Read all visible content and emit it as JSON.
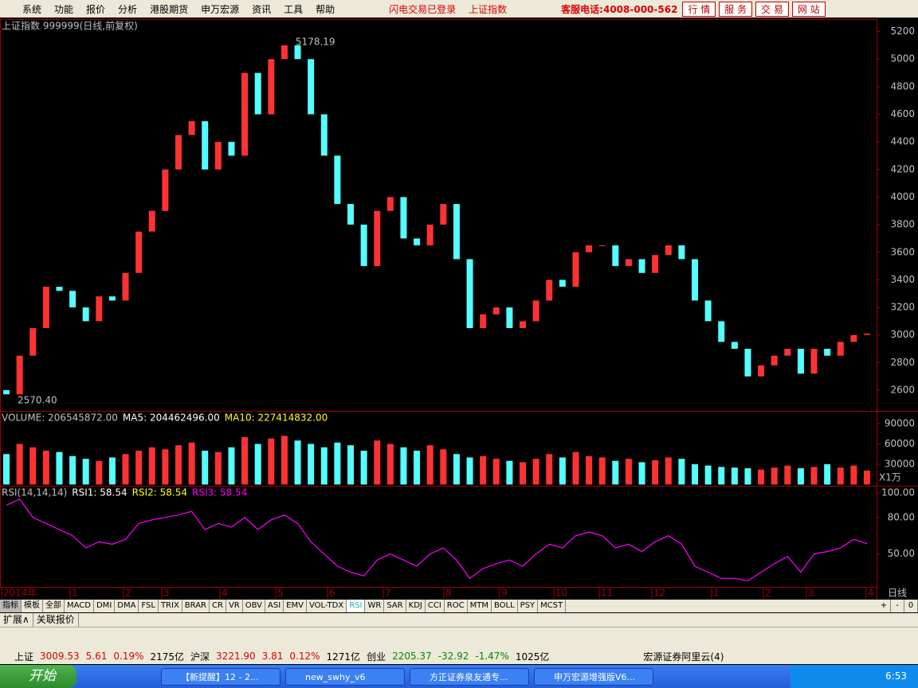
{
  "menu": {
    "items": [
      "系统",
      "功能",
      "报价",
      "分析",
      "港股期货",
      "申万宏源",
      "资讯",
      "工具",
      "帮助"
    ],
    "status": [
      "闪电交易已登录",
      "上证指数"
    ],
    "hotline": "客服电话:4008-000-562",
    "buttons": [
      "行 情",
      "服 务",
      "交 易",
      "网 站"
    ]
  },
  "chart_data": [
    {
      "type": "candlestick",
      "title": "上证指数 999999(日线,前复权)",
      "annotations": [
        "5178.19",
        "2570.40"
      ],
      "open": [
        2600,
        2570,
        2850,
        3050,
        3350,
        3320,
        3200,
        3100,
        3280,
        3250,
        3450,
        3750,
        3900,
        4200,
        4450,
        4550,
        4200,
        4400,
        4300,
        4900,
        4600,
        5000,
        5100,
        5000,
        4600,
        4300,
        3950,
        3800,
        3500,
        3900,
        4000,
        3700,
        3650,
        3800,
        3950,
        3550,
        3050,
        3150,
        3200,
        3050,
        3100,
        3250,
        3400,
        3350,
        3600,
        3650,
        3650,
        3500,
        3550,
        3450,
        3580,
        3650,
        3550,
        3250,
        3100,
        2950,
        2900,
        2700,
        2780,
        2850,
        2900,
        2720,
        2900,
        2850,
        2950,
        3000
      ],
      "close": [
        2570,
        2850,
        3050,
        3350,
        3320,
        3200,
        3100,
        3280,
        3250,
        3450,
        3750,
        3900,
        4200,
        4450,
        4550,
        4200,
        4400,
        4300,
        4900,
        4600,
        5000,
        5100,
        5000,
        4600,
        4300,
        3950,
        3800,
        3500,
        3900,
        4000,
        3700,
        3650,
        3800,
        3950,
        3550,
        3050,
        3150,
        3200,
        3050,
        3100,
        3250,
        3400,
        3350,
        3600,
        3650,
        3650,
        3500,
        3550,
        3450,
        3580,
        3650,
        3550,
        3250,
        3100,
        2950,
        2900,
        2700,
        2780,
        2850,
        2900,
        2720,
        2900,
        2850,
        2950,
        3000,
        3009.53
      ],
      "up_color": "#ff3232",
      "down_color": "#54ffff",
      "ylim": [
        2450,
        5290
      ],
      "yticks": [
        2600,
        2800,
        3000,
        3200,
        3400,
        3600,
        3800,
        4000,
        4200,
        4400,
        4600,
        4800,
        5000,
        5200
      ]
    },
    {
      "type": "bar",
      "title": "VOLUME: 206545872.00",
      "legend": [
        {
          "text": "MA5: 204462496.00",
          "color": "#ffffff"
        },
        {
          "text": "MA10: 227414832.00",
          "color": "#ffff00"
        }
      ],
      "values": [
        45000,
        60000,
        55000,
        50000,
        48000,
        42000,
        38000,
        35000,
        40000,
        45000,
        50000,
        55000,
        52000,
        58000,
        62000,
        50000,
        48000,
        55000,
        70000,
        60000,
        68000,
        72000,
        65000,
        60000,
        55000,
        62000,
        58000,
        50000,
        65000,
        60000,
        55000,
        50000,
        58000,
        52000,
        45000,
        40000,
        42000,
        38000,
        35000,
        33000,
        38000,
        45000,
        40000,
        48000,
        42000,
        40000,
        35000,
        38000,
        33000,
        36000,
        40000,
        38000,
        30000,
        28000,
        26000,
        25000,
        24000,
        22000,
        25000,
        28000,
        24000,
        26000,
        30000,
        25000,
        28000,
        20654.5872
      ],
      "unit": "X1万",
      "ylim": [
        -1800,
        108800
      ],
      "yticks": [
        30000,
        60000,
        90000
      ]
    },
    {
      "type": "line",
      "title": "RSI(14,14,14)",
      "legend": [
        {
          "text": "RSI1: 58.54",
          "color": "#ffffff"
        },
        {
          "text": "RSI2: 58.54",
          "color": "#ffff00"
        },
        {
          "text": "RSI3: 58.54",
          "color": "#ff00ff"
        }
      ],
      "color": "#ff00ff",
      "values": [
        90,
        95,
        80,
        75,
        70,
        65,
        55,
        60,
        58,
        62,
        75,
        78,
        80,
        82,
        85,
        70,
        75,
        72,
        80,
        70,
        78,
        82,
        75,
        60,
        50,
        40,
        35,
        32,
        45,
        50,
        45,
        40,
        50,
        55,
        45,
        30,
        38,
        42,
        45,
        40,
        50,
        58,
        55,
        65,
        68,
        65,
        55,
        58,
        52,
        60,
        65,
        58,
        40,
        35,
        30,
        30,
        28,
        35,
        42,
        48,
        35,
        50,
        52,
        55,
        62,
        58.54
      ],
      "ylim": [
        23,
        106
      ],
      "yticks": [
        {
          "value": 50,
          "label": "50.00"
        },
        {
          "value": 80,
          "label": "80.00"
        },
        {
          "value": 100,
          "label": "100.00"
        }
      ]
    }
  ],
  "x_labels": [
    "2014年",
    "1",
    "2",
    "3",
    "4",
    "5",
    "6",
    "7",
    "8",
    "9",
    "10",
    "11",
    "12",
    "1",
    "2",
    "3",
    "4"
  ],
  "period": "日线",
  "tabs": [
    "指标",
    "模板",
    "全部",
    "MACD",
    "DMI",
    "DMA",
    "FSL",
    "TRIX",
    "BRAR",
    "CR",
    "VR",
    "OBV",
    "ASI",
    "EMV",
    "VOL-TDX",
    "RSI",
    "WR",
    "SAR",
    "KDJ",
    "CCI",
    "ROC",
    "MTM",
    "BOLL",
    "PSY",
    "MCST"
  ],
  "tab_buttons": [
    "+",
    "-",
    "0"
  ],
  "sub_tabs": [
    "扩展∧",
    "关联报价"
  ],
  "statusbar": [
    "上证",
    "3009.53",
    "5.61",
    "0.19%",
    "2175亿",
    "沪深",
    "3221.90",
    "3.81",
    "0.12%",
    "1271亿",
    "创业",
    "2205.37",
    "-32.92",
    "-1.47%",
    "1025亿",
    "宏源证券阿里云(4)"
  ],
  "taskbar": {
    "start": "开始",
    "tasks": [
      "【新提醒】12 - 2...",
      "new_swhy_v6",
      "方正证券泉友通专...",
      "申万宏源增强版V6..."
    ],
    "clock": "6:53"
  }
}
